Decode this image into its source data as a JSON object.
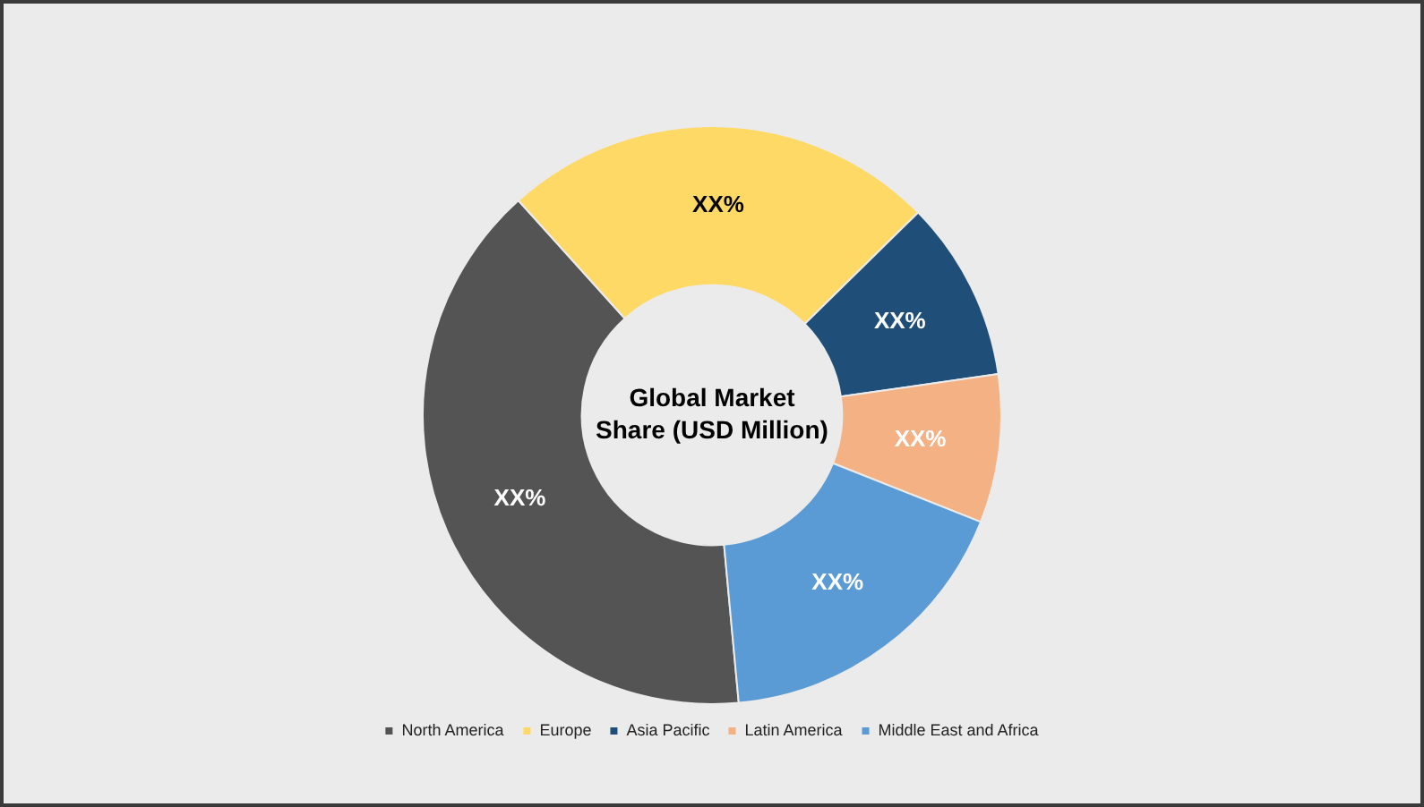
{
  "chart_data": {
    "type": "donut",
    "title": "Global Market Share (USD Million)",
    "categories": [
      "North America",
      "Europe",
      "Asia Pacific",
      "Latin America",
      "Middle East and Africa"
    ],
    "values": [
      39.8,
      24.3,
      10.1,
      8.3,
      17.5
    ],
    "colors": [
      "#545454",
      "#ffd966",
      "#1f4e79",
      "#f4b183",
      "#5b9bd5"
    ],
    "value_labels": [
      "XX%",
      "XX%",
      "XX%",
      "XX%",
      "XX%"
    ],
    "legend": "bottom"
  }
}
